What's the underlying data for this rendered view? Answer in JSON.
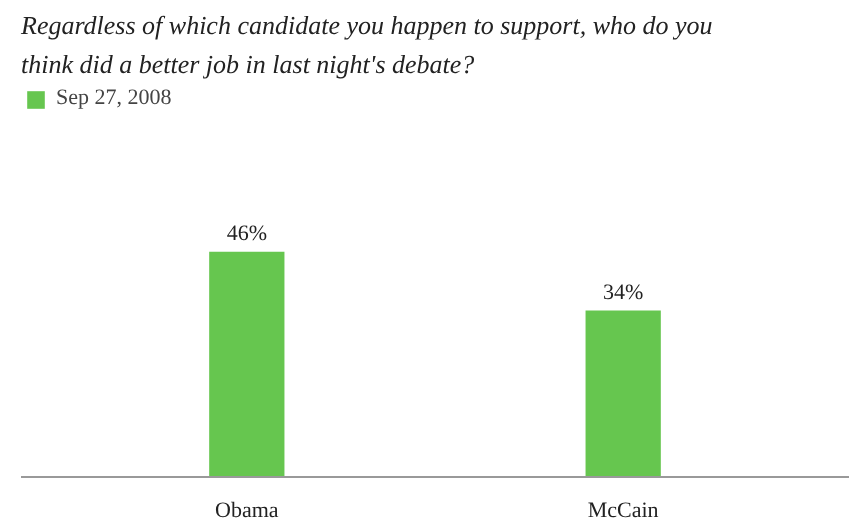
{
  "chart_data": {
    "type": "bar",
    "title": "Regardless of which candidate you happen to support, who do you think did a better job in last night's debate?",
    "categories": [
      "Obama",
      "McCain"
    ],
    "series": [
      {
        "name": "Sep 27, 2008",
        "color": "#66c64f",
        "values": [
          46,
          34
        ],
        "value_labels": [
          "46%",
          "34%"
        ]
      }
    ],
    "legend": "top left",
    "grid": false
  }
}
